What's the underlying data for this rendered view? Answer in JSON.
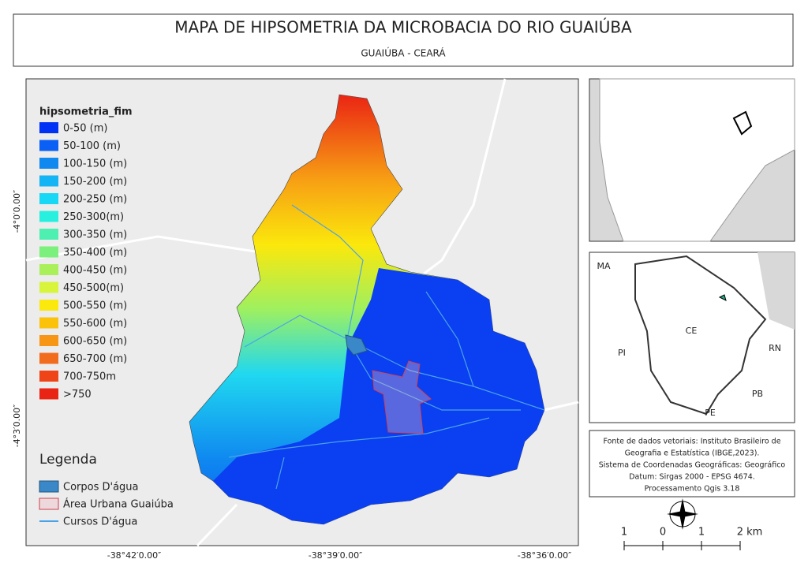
{
  "header": {
    "title": "MAPA DE HIPSOMETRIA DA MICROBACIA DO RIO GUAIÚBA",
    "subtitle": "GUAIÚBA - CEARÁ"
  },
  "hypsometry_legend": {
    "title": "hipsometria_fim",
    "classes": [
      {
        "label": "0-50 (m)",
        "color": "#0032f5"
      },
      {
        "label": "50-100 (m)",
        "color": "#0a5ff5"
      },
      {
        "label": "100-150 (m)",
        "color": "#0f88f0"
      },
      {
        "label": "150-200 (m)",
        "color": "#14b4f5"
      },
      {
        "label": "200-250 (m)",
        "color": "#18d8f5"
      },
      {
        "label": "250-300(m)",
        "color": "#27f0de"
      },
      {
        "label": "300-350 (m)",
        "color": "#4ef0b2"
      },
      {
        "label": "350-400 (m)",
        "color": "#7cf07c"
      },
      {
        "label": "400-450 (m)",
        "color": "#aaf05a"
      },
      {
        "label": "450-500(m)",
        "color": "#d8f53c"
      },
      {
        "label": "500-550 (m)",
        "color": "#fbe80c"
      },
      {
        "label": "550-600 (m)",
        "color": "#fbc20a"
      },
      {
        "label": "600-650 (m)",
        "color": "#f79614"
      },
      {
        "label": "650-700 (m)",
        "color": "#f26c1e"
      },
      {
        "label": "700-750m",
        "color": "#ee4418"
      },
      {
        "label": ">750",
        "color": "#ea2414"
      }
    ]
  },
  "legend": {
    "title": "Legenda",
    "items": [
      "Corpos D'água",
      "Área Urbana Guaiúba",
      "Cursos D'água"
    ]
  },
  "coordinates": {
    "y": [
      "-4°0′0.00″",
      "-4°3′0.00″"
    ],
    "x": [
      "-38°42′0.00″",
      "-38°39′0.00″",
      "-38°36′0.00″"
    ]
  },
  "inset_labels": [
    "MA",
    "PI",
    "CE",
    "RN",
    "PB",
    "PE"
  ],
  "source_note": [
    "Fonte de dados vetoriais: Instituto Brasileiro de",
    "Geografia e Estatística (IBGE,2023).",
    "Sistema de Coordenadas Geográficas: Geográfico",
    "Datum: Sirgas 2000 - EPSG 4674.",
    "Processamento Qgis 3.18"
  ],
  "scale_bar": [
    "1",
    "0",
    "1",
    "2 km"
  ]
}
